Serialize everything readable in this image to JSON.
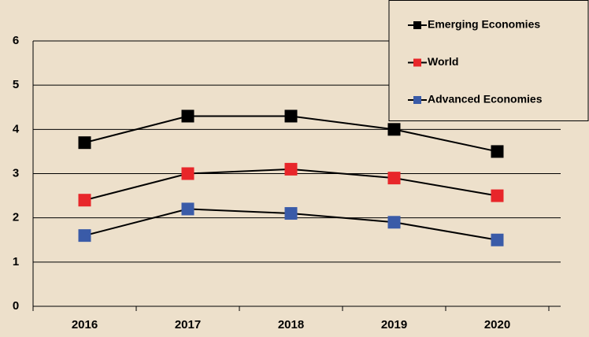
{
  "chart_data": {
    "type": "line",
    "categories": [
      "2016",
      "2017",
      "2018",
      "2019",
      "2020"
    ],
    "series": [
      {
        "name": "Emerging Economies",
        "color": "#000000",
        "values": [
          3.7,
          4.3,
          4.3,
          4.0,
          3.5
        ]
      },
      {
        "name": "World",
        "color": "#e8262a",
        "values": [
          2.4,
          3.0,
          3.1,
          2.9,
          2.5
        ]
      },
      {
        "name": "Advanced Economies",
        "color": "#3a5ba8",
        "values": [
          1.6,
          2.2,
          2.1,
          1.9,
          1.5
        ]
      }
    ],
    "ylim": [
      0,
      6
    ],
    "yticks": [
      0,
      1,
      2,
      3,
      4,
      5,
      6
    ],
    "grid": true,
    "legend": "upper right"
  }
}
